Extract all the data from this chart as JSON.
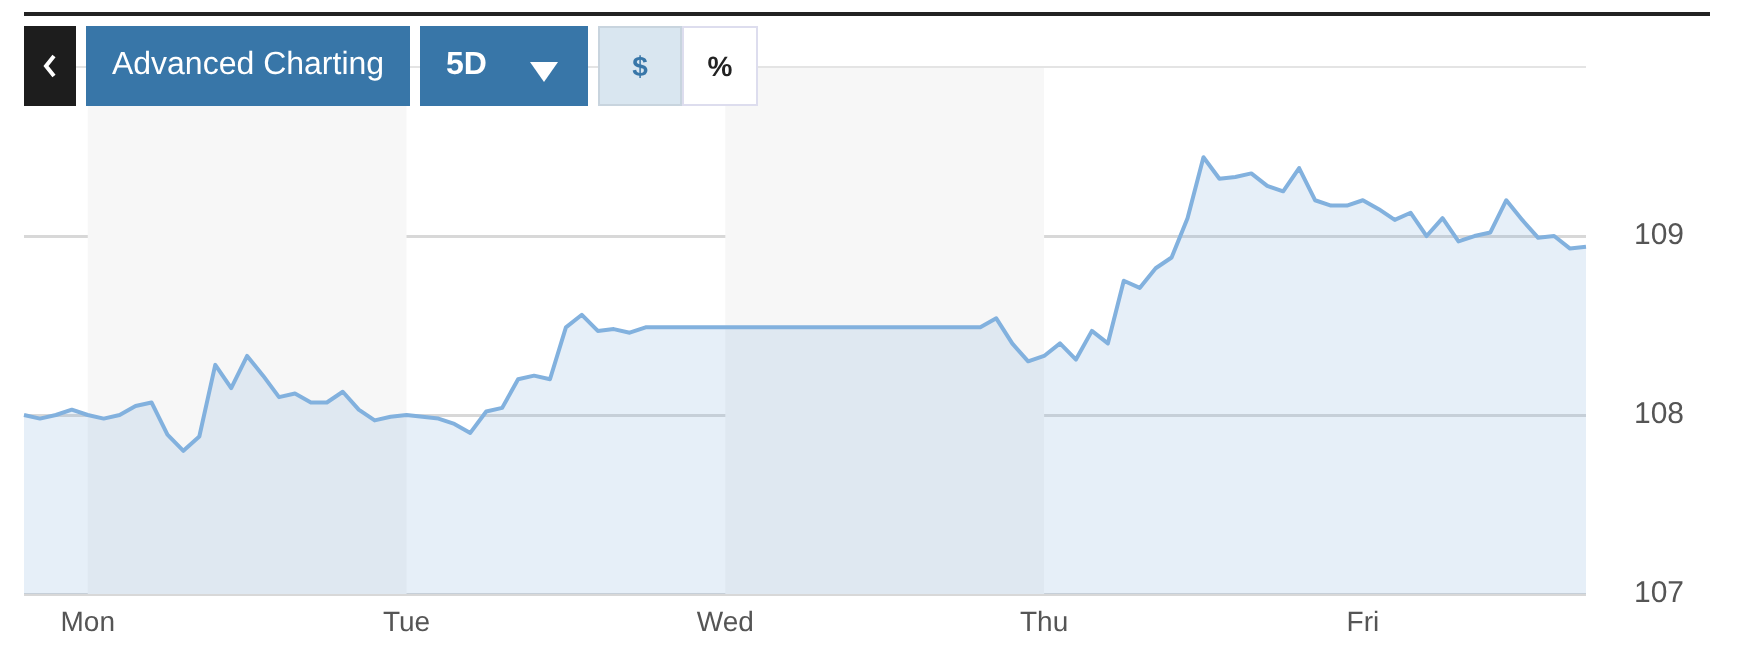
{
  "chart_data": {
    "type": "area",
    "color": "#82b1de",
    "categories": [
      null,
      null,
      null,
      null,
      "Mon",
      null,
      null,
      null,
      null,
      null,
      null,
      null,
      null,
      null,
      null,
      null,
      null,
      null,
      null,
      null,
      null,
      null,
      null,
      null,
      "Tue",
      null,
      null,
      null,
      null,
      null,
      null,
      null,
      null,
      null,
      null,
      null,
      null,
      null,
      null,
      null,
      null,
      null,
      null,
      null,
      "Wed",
      null,
      null,
      null,
      null,
      null,
      null,
      null,
      null,
      null,
      null,
      null,
      null,
      null,
      null,
      null,
      null,
      null,
      null,
      null,
      "Thu",
      null,
      null,
      null,
      null,
      null,
      null,
      null,
      null,
      null,
      null,
      null,
      null,
      null,
      null,
      null,
      null,
      null,
      null,
      null,
      "Fri",
      null,
      null,
      null,
      null,
      null,
      null,
      null,
      null,
      null,
      null,
      null,
      null,
      null,
      null
    ],
    "values": [
      108.0,
      107.98,
      108.0,
      108.03,
      108.0,
      107.98,
      108.0,
      108.05,
      108.07,
      107.89,
      107.8,
      107.88,
      108.28,
      108.15,
      108.33,
      108.22,
      108.1,
      108.12,
      108.07,
      108.07,
      108.13,
      108.03,
      107.97,
      107.99,
      108.0,
      107.99,
      107.98,
      107.95,
      107.9,
      108.02,
      108.04,
      108.2,
      108.22,
      108.2,
      108.49,
      108.56,
      108.47,
      108.48,
      108.46,
      108.49,
      108.49,
      108.49,
      108.49,
      108.49,
      108.49,
      108.49,
      108.49,
      108.49,
      108.49,
      108.49,
      108.49,
      108.49,
      108.49,
      108.49,
      108.49,
      108.49,
      108.49,
      108.49,
      108.49,
      108.49,
      108.49,
      108.54,
      108.4,
      108.3,
      108.33,
      108.4,
      108.31,
      108.47,
      108.4,
      108.75,
      108.71,
      108.82,
      108.88,
      109.1,
      109.44,
      109.32,
      109.33,
      109.35,
      109.28,
      109.25,
      109.38,
      109.2,
      109.17,
      109.17,
      109.2,
      109.15,
      109.09,
      109.13,
      109.0,
      109.1,
      108.97,
      109.0,
      109.02,
      109.2,
      109.09,
      108.99,
      109.0,
      108.93,
      108.94
    ],
    "ylim": [
      107,
      109.95
    ],
    "yticks": [
      107,
      108,
      109
    ],
    "grid": "y",
    "bands": [
      {
        "axis": "x",
        "from": "Mon",
        "to": "Tue",
        "color": "#f7f7f7"
      },
      {
        "axis": "x",
        "from": "Wed",
        "to": "Thu",
        "color": "#f7f7f7"
      }
    ],
    "annotations": [
      "Advanced Charting",
      "5D",
      "$",
      "%"
    ]
  }
}
